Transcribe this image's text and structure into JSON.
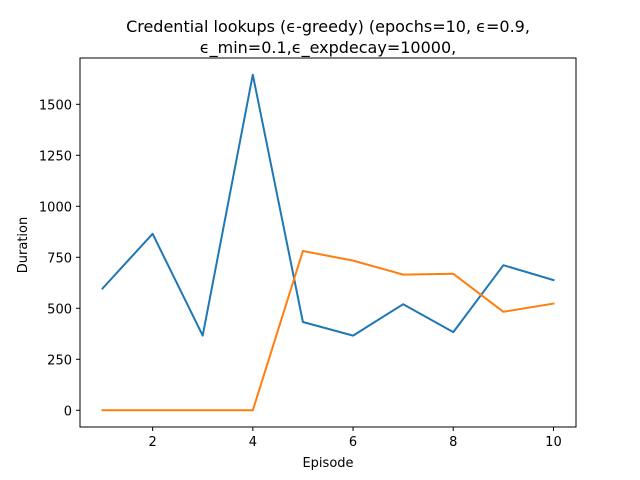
{
  "chart_data": {
    "type": "line",
    "title_lines": [
      "Credential lookups (ϵ-greedy) (epochs=10, ϵ=0.9,",
      "ϵ_min=0.1,ϵ_expdecay=10000,"
    ],
    "xlabel": "Episode",
    "ylabel": "Duration",
    "xlim": [
      0.55,
      10.45
    ],
    "ylim": [
      -82,
      1727
    ],
    "x_ticks": [
      2,
      4,
      6,
      8,
      10
    ],
    "y_ticks": [
      0,
      250,
      500,
      750,
      1000,
      1250,
      1500
    ],
    "grid": false,
    "legend": "none",
    "x": [
      1,
      2,
      3,
      4,
      5,
      6,
      7,
      8,
      9,
      10
    ],
    "series": [
      {
        "color": "#1f77b4",
        "values": [
          597,
          865,
          366,
          1645,
          433,
          366,
          520,
          383,
          711,
          638
        ]
      },
      {
        "color": "#ff7f0e",
        "values": [
          0,
          0,
          0,
          0,
          781,
          734,
          665,
          669,
          483,
          523
        ]
      }
    ]
  }
}
